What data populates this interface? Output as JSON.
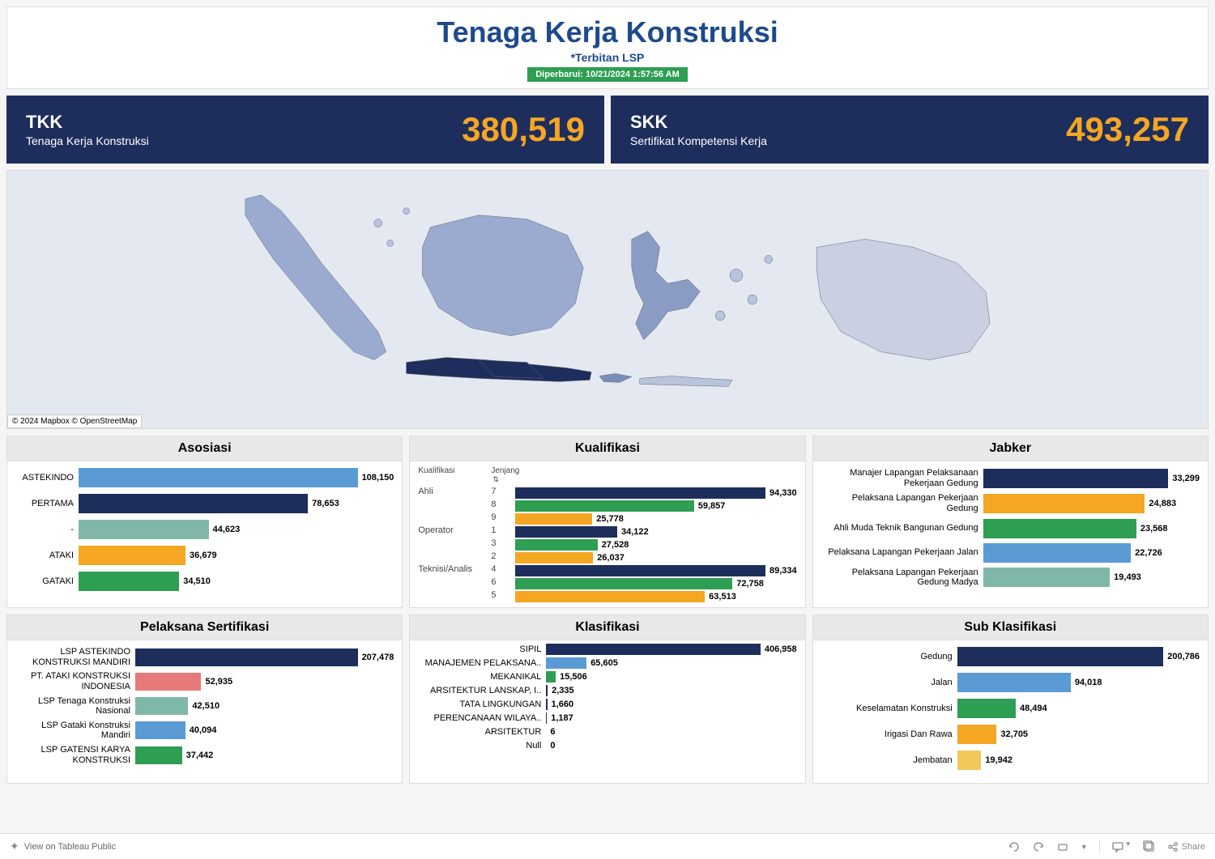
{
  "header": {
    "title": "Tenaga Kerja Konstruksi",
    "subtitle": "*Terbitan LSP",
    "updated": "Diperbarui: 10/21/2024 1:57:56 AM"
  },
  "kpi": [
    {
      "label": "TKK",
      "desc": "Tenaga Kerja Konstruksi",
      "value": "380,519"
    },
    {
      "label": "SKK",
      "desc": "Sertifikat Kompetensi Kerja",
      "value": "493,257"
    }
  ],
  "map": {
    "attrib": "© 2024 Mapbox © OpenStreetMap",
    "bg": "#e4e8f0"
  },
  "colors": {
    "navy": "#1e2e5c",
    "orange": "#f5a623",
    "green": "#2e9e53",
    "lightblue": "#5b9bd5",
    "teal": "#7fb8a8",
    "coral": "#e67a7a",
    "yellow": "#f0c859"
  },
  "charts": {
    "asosiasi": {
      "title": "Asosiasi",
      "label_width": 78,
      "max": 108150,
      "rows": [
        {
          "label": "ASTEKINDO",
          "value": 108150,
          "text": "108,150",
          "color": "#5b9bd5"
        },
        {
          "label": "PERTAMA",
          "value": 78653,
          "text": "78,653",
          "color": "#1e2e5c"
        },
        {
          "label": "-",
          "value": 44623,
          "text": "44,623",
          "color": "#7fb8a8"
        },
        {
          "label": "ATAKI",
          "value": 36679,
          "text": "36,679",
          "color": "#f5a623"
        },
        {
          "label": "GATAKI",
          "value": 34510,
          "text": "34,510",
          "color": "#2e9e53"
        }
      ]
    },
    "kualifikasi": {
      "title": "Kualifikasi",
      "headers": [
        "Kualifikasi",
        "Jenjang"
      ],
      "max": 94330,
      "groups": [
        {
          "name": "Ahli",
          "rows": [
            {
              "jen": "7",
              "value": 94330,
              "text": "94,330",
              "color": "#1e2e5c"
            },
            {
              "jen": "8",
              "value": 59857,
              "text": "59,857",
              "color": "#2e9e53"
            },
            {
              "jen": "9",
              "value": 25778,
              "text": "25,778",
              "color": "#f5a623"
            }
          ]
        },
        {
          "name": "Operator",
          "rows": [
            {
              "jen": "1",
              "value": 34122,
              "text": "34,122",
              "color": "#1e2e5c"
            },
            {
              "jen": "3",
              "value": 27528,
              "text": "27,528",
              "color": "#2e9e53"
            },
            {
              "jen": "2",
              "value": 26037,
              "text": "26,037",
              "color": "#f5a623"
            }
          ]
        },
        {
          "name": "Teknisi/Analis",
          "rows": [
            {
              "jen": "4",
              "value": 89334,
              "text": "89,334",
              "color": "#1e2e5c"
            },
            {
              "jen": "6",
              "value": 72758,
              "text": "72,758",
              "color": "#2e9e53"
            },
            {
              "jen": "5",
              "value": 63513,
              "text": "63,513",
              "color": "#f5a623"
            }
          ]
        }
      ]
    },
    "jabker": {
      "title": "Jabker",
      "label_width": 200,
      "max": 33299,
      "rows": [
        {
          "label": "Manajer Lapangan Pelaksanaan Pekerjaan Gedung",
          "value": 33299,
          "text": "33,299",
          "color": "#1e2e5c"
        },
        {
          "label": "Pelaksana Lapangan Pekerjaan Gedung",
          "value": 24883,
          "text": "24,883",
          "color": "#f5a623"
        },
        {
          "label": "Ahli Muda Teknik Bangunan Gedung",
          "value": 23568,
          "text": "23,568",
          "color": "#2e9e53"
        },
        {
          "label": "Pelaksana Lapangan Pekerjaan Jalan",
          "value": 22726,
          "text": "22,726",
          "color": "#5b9bd5"
        },
        {
          "label": "Pelaksana Lapangan Pekerjaan Gedung Madya",
          "value": 19493,
          "text": "19,493",
          "color": "#7fb8a8"
        }
      ]
    },
    "pelaksana": {
      "title": "Pelaksana Sertifikasi",
      "label_width": 148,
      "max": 207478,
      "rows": [
        {
          "label": "LSP ASTEKINDO KONSTRUKSI MANDIRI",
          "value": 207478,
          "text": "207,478",
          "color": "#1e2e5c"
        },
        {
          "label": "PT. ATAKI KONSTRUKSI INDONESIA",
          "value": 52935,
          "text": "52,935",
          "color": "#e67a7a"
        },
        {
          "label": "LSP Tenaga Konstruksi Nasional",
          "value": 42510,
          "text": "42,510",
          "color": "#7fb8a8"
        },
        {
          "label": "LSP Gataki Konstruksi Mandiri",
          "value": 40094,
          "text": "40,094",
          "color": "#5b9bd5"
        },
        {
          "label": "LSP GATENSI KARYA KONSTRUKSI",
          "value": 37442,
          "text": "37,442",
          "color": "#2e9e53"
        }
      ]
    },
    "klasifikasi": {
      "title": "Klasifikasi",
      "label_width": 158,
      "max": 406958,
      "rows": [
        {
          "label": "SIPIL",
          "value": 406958,
          "text": "406,958",
          "color": "#1e2e5c"
        },
        {
          "label": "MANAJEMEN PELAKSANA..",
          "value": 65605,
          "text": "65,605",
          "color": "#5b9bd5"
        },
        {
          "label": "MEKANIKAL",
          "value": 15506,
          "text": "15,506",
          "color": "#2e9e53"
        },
        {
          "label": "ARSITEKTUR LANSKAP, I..",
          "value": 2335,
          "text": "2,335",
          "color": "#1e2e5c"
        },
        {
          "label": "TATA LINGKUNGAN",
          "value": 1660,
          "text": "1,660",
          "color": "#1e2e5c"
        },
        {
          "label": "PERENCANAAN WILAYA..",
          "value": 1187,
          "text": "1,187",
          "color": "#1e2e5c"
        },
        {
          "label": "ARSITEKTUR",
          "value": 6,
          "text": "6",
          "color": "#1e2e5c"
        },
        {
          "label": "Null",
          "value": 0,
          "text": "0",
          "color": "#1e2e5c"
        }
      ]
    },
    "subklasifikasi": {
      "title": "Sub Klasifikasi",
      "label_width": 168,
      "max": 200786,
      "rows": [
        {
          "label": "Gedung",
          "value": 200786,
          "text": "200,786",
          "color": "#1e2e5c"
        },
        {
          "label": "Jalan",
          "value": 94018,
          "text": "94,018",
          "color": "#5b9bd5"
        },
        {
          "label": "Keselamatan Konstruksi",
          "value": 48494,
          "text": "48,494",
          "color": "#2e9e53"
        },
        {
          "label": "Irigasi Dan Rawa",
          "value": 32705,
          "text": "32,705",
          "color": "#f5a623"
        },
        {
          "label": "Jembatan",
          "value": 19942,
          "text": "19,942",
          "color": "#f0c859"
        }
      ]
    }
  },
  "footer": {
    "view_label": "View on Tableau Public",
    "share_label": "Share"
  }
}
